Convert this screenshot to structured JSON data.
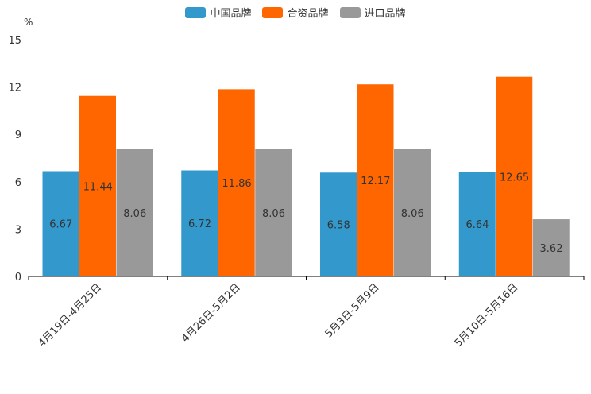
{
  "chart_data": {
    "type": "bar",
    "unit": "%",
    "categories": [
      "4月19日-4月25日",
      "4月26日-5月2日",
      "5月3日-5月9日",
      "5月10日-5月16日"
    ],
    "series": [
      {
        "name": "中国品牌",
        "color": "#3399cc",
        "values": [
          6.67,
          6.72,
          6.58,
          6.64
        ]
      },
      {
        "name": "合资品牌",
        "color": "#ff6600",
        "values": [
          11.44,
          11.86,
          12.17,
          12.65
        ]
      },
      {
        "name": "进口品牌",
        "color": "#999999",
        "values": [
          8.06,
          8.06,
          8.06,
          3.62
        ]
      }
    ],
    "yticks": [
      0,
      3,
      6,
      9,
      12,
      15
    ],
    "ylim": [
      0,
      15
    ],
    "legend_position": "top-center",
    "grid": false
  }
}
